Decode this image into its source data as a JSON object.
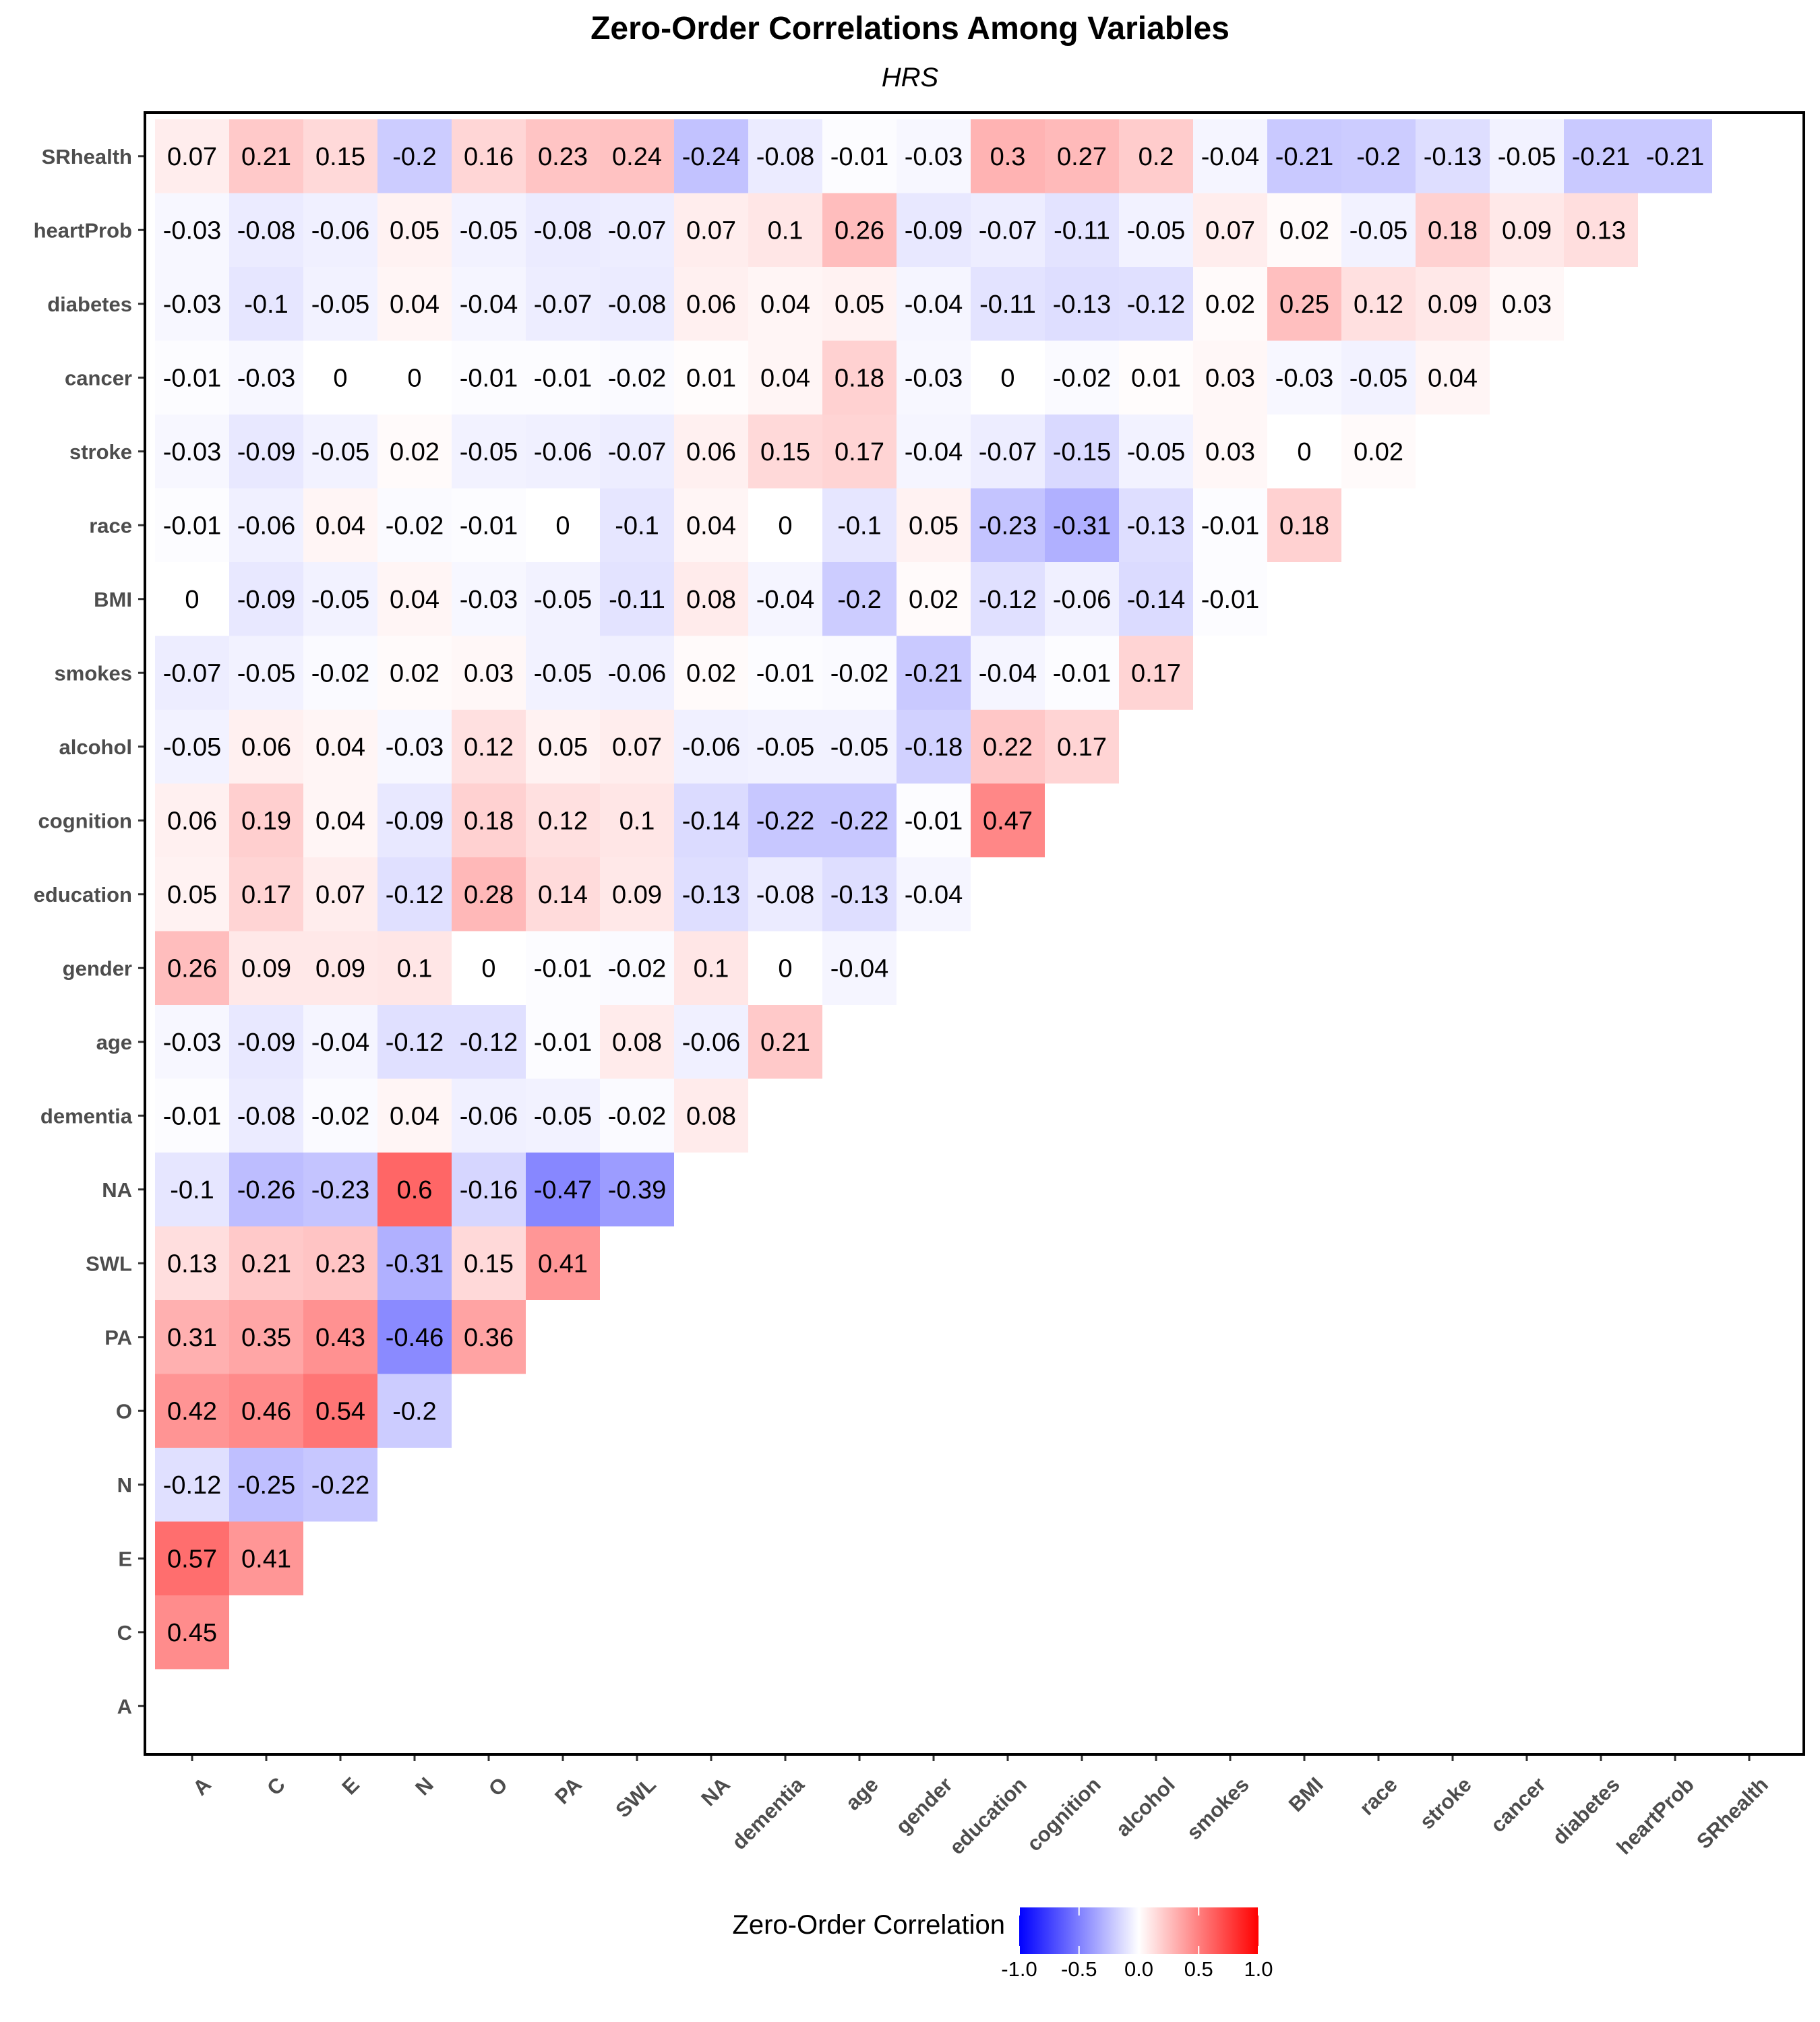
{
  "chart_data": {
    "type": "heatmap",
    "title": "Zero-Order Correlations Among Variables",
    "subtitle": "HRS",
    "xlabel": "",
    "ylabel": "",
    "variables": [
      "A",
      "C",
      "E",
      "N",
      "O",
      "PA",
      "SWL",
      "NA",
      "dementia",
      "age",
      "gender",
      "education",
      "cognition",
      "alcohol",
      "smokes",
      "BMI",
      "race",
      "stroke",
      "cancer",
      "diabetes",
      "heartProb",
      "SRhealth"
    ],
    "rows": [
      {
        "name": "C",
        "values": [
          0.45
        ]
      },
      {
        "name": "E",
        "values": [
          0.57,
          0.41
        ]
      },
      {
        "name": "N",
        "values": [
          -0.12,
          -0.25,
          -0.22
        ]
      },
      {
        "name": "O",
        "values": [
          0.42,
          0.46,
          0.54,
          -0.2
        ]
      },
      {
        "name": "PA",
        "values": [
          0.31,
          0.35,
          0.43,
          -0.46,
          0.36
        ]
      },
      {
        "name": "SWL",
        "values": [
          0.13,
          0.21,
          0.23,
          -0.31,
          0.15,
          0.41
        ]
      },
      {
        "name": "dementia",
        "values": [
          -0.01,
          -0.08,
          -0.02,
          0.04,
          -0.06,
          -0.05,
          -0.02,
          0.08
        ]
      },
      {
        "name": "age",
        "values": [
          -0.03,
          -0.09,
          -0.04,
          -0.12,
          -0.12,
          -0.01,
          0.08,
          -0.06,
          0.21
        ]
      },
      {
        "name": "gender",
        "values": [
          0.26,
          0.09,
          0.09,
          0.1,
          0,
          -0.01,
          -0.02,
          0.1,
          0,
          -0.04
        ]
      },
      {
        "name": "education",
        "values": [
          0.05,
          0.17,
          0.07,
          -0.12,
          0.28,
          0.14,
          0.09,
          -0.13,
          -0.08,
          -0.13,
          -0.04
        ]
      },
      {
        "name": "cognition",
        "values": [
          0.06,
          0.19,
          0.04,
          -0.09,
          0.18,
          0.12,
          0.1,
          -0.14,
          -0.22,
          -0.22,
          -0.01,
          0.47
        ]
      },
      {
        "name": "alcohol",
        "values": [
          -0.05,
          0.06,
          0.04,
          -0.03,
          0.12,
          0.05,
          0.07,
          -0.06,
          -0.05,
          -0.05,
          -0.18,
          0.22,
          0.17
        ]
      },
      {
        "name": "smokes",
        "values": [
          -0.07,
          -0.05,
          -0.02,
          0.02,
          0.03,
          -0.05,
          -0.06,
          0.02,
          -0.01,
          -0.02,
          -0.21,
          -0.04,
          -0.01,
          0.17
        ]
      },
      {
        "name": "BMI",
        "values": [
          0,
          -0.09,
          -0.05,
          0.04,
          -0.03,
          -0.05,
          -0.11,
          0.08,
          -0.04,
          -0.2,
          0.02,
          -0.12,
          -0.06,
          -0.14,
          -0.01
        ]
      },
      {
        "name": "race",
        "values": [
          -0.01,
          -0.06,
          0.04,
          -0.02,
          -0.01,
          0,
          -0.1,
          0.04,
          0,
          -0.1,
          0.05,
          -0.23,
          -0.31,
          -0.13,
          -0.01,
          0.18
        ]
      },
      {
        "name": "stroke",
        "values": [
          -0.03,
          -0.09,
          -0.05,
          0.02,
          -0.05,
          -0.06,
          -0.07,
          0.06,
          0.15,
          0.17,
          -0.04,
          -0.07,
          -0.15,
          -0.05,
          0.03,
          0,
          0.02
        ]
      },
      {
        "name": "cancer",
        "values": [
          -0.01,
          -0.03,
          0,
          0,
          -0.01,
          -0.01,
          -0.02,
          0.01,
          0.04,
          0.18,
          -0.03,
          0,
          -0.02,
          0.01,
          0.03,
          -0.03,
          -0.05,
          0.04
        ]
      },
      {
        "name": "diabetes",
        "values": [
          -0.03,
          -0.1,
          -0.05,
          0.04,
          -0.04,
          -0.07,
          -0.08,
          0.06,
          0.04,
          0.05,
          -0.04,
          -0.11,
          -0.13,
          -0.12,
          0.02,
          0.25,
          0.12,
          0.09,
          0.03
        ]
      },
      {
        "name": "heartProb",
        "values": [
          -0.03,
          -0.08,
          -0.06,
          0.05,
          -0.05,
          -0.08,
          -0.07,
          0.07,
          0.1,
          0.26,
          -0.09,
          -0.07,
          -0.11,
          -0.05,
          0.07,
          0.02,
          -0.05,
          0.18,
          0.09,
          0.13
        ]
      },
      {
        "name": "SRhealth",
        "values": [
          0.07,
          0.21,
          0.15,
          -0.2,
          0.16,
          0.23,
          0.24,
          -0.24,
          -0.08,
          -0.01,
          -0.03,
          0.3,
          0.27,
          0.2,
          -0.04,
          -0.21,
          -0.2,
          -0.13,
          -0.05,
          -0.21,
          -0.21
        ]
      },
      {
        "name": "NA",
        "values": [
          -0.1,
          -0.26,
          -0.23,
          0.6,
          -0.16,
          -0.47,
          -0.39
        ]
      }
    ],
    "legend": {
      "title": "Zero-Order Correlation",
      "ticks": [
        "-1.0",
        "-0.5",
        "0.0",
        "0.5",
        "1.0"
      ],
      "range": [
        -1,
        1
      ],
      "low_color": "#0000ff",
      "mid_color": "#ffffff",
      "high_color": "#ff0000",
      "position": "bottom"
    },
    "grid": false
  }
}
